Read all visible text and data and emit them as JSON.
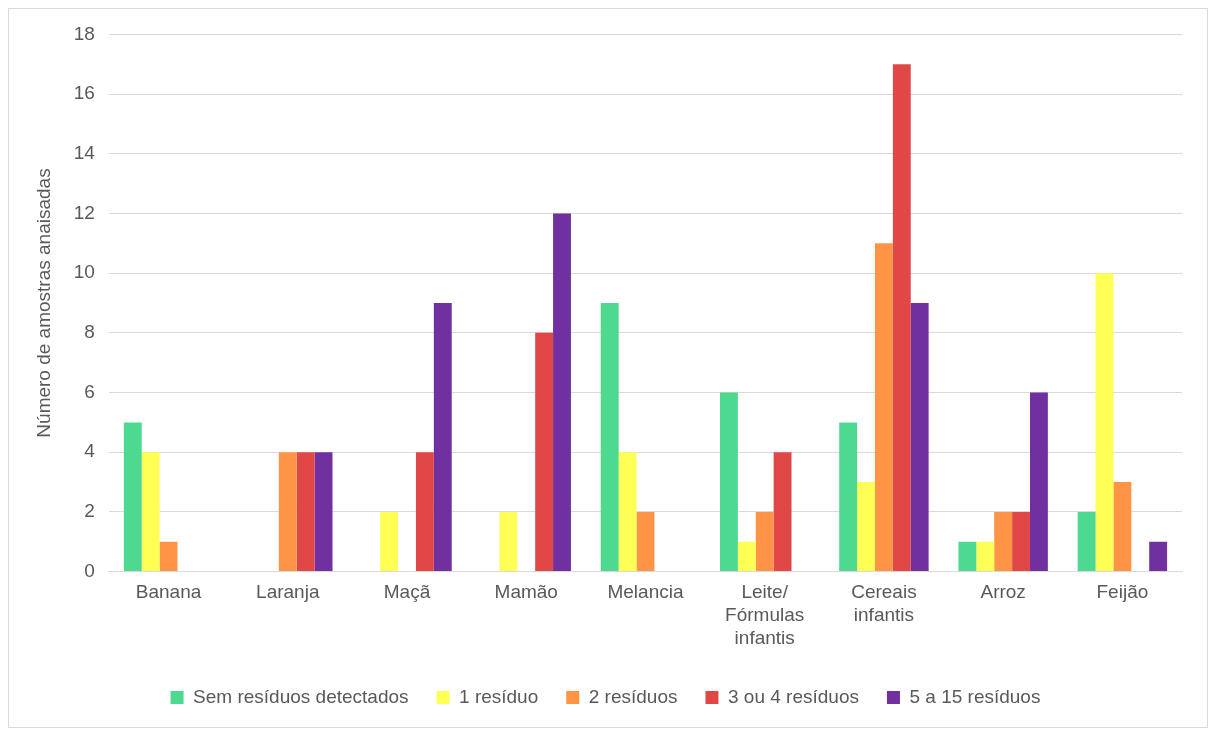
{
  "chart_data": {
    "type": "bar",
    "ylabel": "Número de amostras anaisadas",
    "categories": [
      "Banana",
      "Laranja",
      "Maçã",
      "Mamão",
      "Melancia",
      "Leite/ Fórmulas infantis",
      "Cereais infantis",
      "Arroz",
      "Feijão"
    ],
    "series": [
      {
        "name": "Sem resíduos detectados",
        "color": "#4dd98f",
        "values": [
          5,
          0,
          0,
          0,
          9,
          6,
          5,
          1,
          2
        ]
      },
      {
        "name": "1 resíduo",
        "color": "#ffff55",
        "values": [
          4,
          0,
          2,
          2,
          4,
          1,
          3,
          1,
          10
        ]
      },
      {
        "name": "2 resíduos",
        "color": "#ff9447",
        "values": [
          1,
          4,
          0,
          0,
          2,
          2,
          11,
          2,
          3
        ]
      },
      {
        "name": "3 ou 4 resíduos",
        "color": "#e04848",
        "values": [
          0,
          4,
          4,
          8,
          0,
          4,
          17,
          2,
          0
        ]
      },
      {
        "name": "5 a 15 resíduos",
        "color": "#7030a0",
        "values": [
          0,
          4,
          9,
          12,
          0,
          0,
          9,
          6,
          1
        ]
      }
    ],
    "ylim": [
      0,
      18
    ],
    "yticks": [
      0,
      2,
      4,
      6,
      8,
      10,
      12,
      14,
      16,
      18
    ],
    "grid": "y",
    "legend": "bottom"
  }
}
